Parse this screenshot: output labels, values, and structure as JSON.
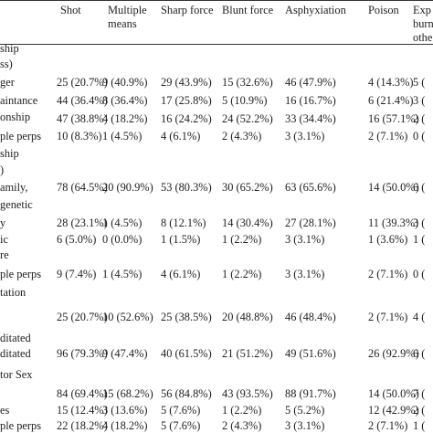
{
  "columns": [
    "Shot",
    "Multiple means",
    "Sharp force",
    "Blunt force",
    "Asphyxiation",
    "Poison",
    "Explosive, burn, other"
  ],
  "column_display": [
    [
      "Shot"
    ],
    [
      "Multiple",
      "means"
    ],
    [
      "Sharp force"
    ],
    [
      "Blunt force"
    ],
    [
      "Asphyxiation"
    ],
    [
      "Poison"
    ],
    [
      "Exp",
      "burn,",
      "othe"
    ]
  ],
  "rows": [
    {
      "label": "ship",
      "cells": []
    },
    {
      "label": "ss)",
      "cells": []
    },
    {
      "label": "ger",
      "cells": [
        "25 (20.7%)",
        "9 (40.9%)",
        "29 (43.9%)",
        "15 (32.6%)",
        "46 (47.9%)",
        "4 (14.3%)",
        "5 ("
      ]
    },
    {
      "label": "aintance",
      "cells": [
        "44 (36.4%)",
        "8 (36.4%)",
        "17 (25.8%)",
        "5 (10.9%)",
        "16 (16.7%)",
        "6 (21.4%)",
        "3 ("
      ]
    },
    {
      "label": "onship",
      "cells": []
    },
    {
      "label": "",
      "cells": [
        "47 (38.8%)",
        "4 (18.2%)",
        "16 (24.2%)",
        "24 (52.2%)",
        "33 (34.4%)",
        "16 (57.1%)",
        "2 ("
      ]
    },
    {
      "label": "ple perps",
      "cells": [
        "10 (8.3%)",
        "1 (4.5%)",
        "4 (6.1%)",
        "2 (4.3%)",
        "3 (3.1%)",
        "2 (7.1%)",
        "0 ("
      ]
    },
    {
      "label": "ship",
      "cells": []
    },
    {
      "label": ")",
      "cells": []
    },
    {
      "label": "amily,",
      "cells": [
        "78 (64.5%)",
        "20 (90.9%)",
        "53 (80.3%)",
        "30 (65.2%)",
        "63 (65.6%)",
        "14 (50.0%)",
        "6 ("
      ]
    },
    {
      "label": "genetic",
      "cells": []
    },
    {
      "label": "y",
      "cells": [
        "28 (23.1%)",
        "1 (4.5%)",
        "8 (12.1%)",
        "14 (30.4%)",
        "27 (28.1%)",
        "11 (39.3%)",
        "3 ("
      ]
    },
    {
      "label": "ic",
      "cells": [
        "6 (5.0%)",
        "0 (0.0%)",
        "1 (1.5%)",
        "1 (2.2%)",
        "3 (3.1%)",
        "1 (3.6%)",
        "1 ("
      ]
    },
    {
      "label": "re",
      "cells": []
    },
    {
      "label": "ple perps",
      "cells": [
        "9 (7.4%)",
        "1 (4.5%)",
        "4 (6.1%)",
        "1 (2.2%)",
        "3 (3.1%)",
        "2 (7.1%)",
        "0 ("
      ]
    },
    {
      "label": "tation",
      "cells": []
    },
    {
      "label": "",
      "cells": [
        "25 (20.7%)",
        "10 (52.6%)",
        "25 (38.5%)",
        "20 (48.8%)",
        "46 (48.4%)",
        "2 (7.1%)",
        "4 ("
      ]
    },
    {
      "label": "ditated",
      "cells": []
    },
    {
      "label": "ditated",
      "cells": [
        "96 (79.3%)",
        "9 (47.4%)",
        "40 (61.5%)",
        "21 (51.2%)",
        "49 (51.6%)",
        "26 (92.9%)",
        "6 ("
      ]
    },
    {
      "label": "tor Sex",
      "cells": []
    },
    {
      "label": "",
      "cells": [
        "84 (69.4%)",
        "15 (68.2%)",
        "56 (84.8%)",
        "43 (93.5%)",
        "88 (91.7%)",
        "14 (50.0%)",
        "7 ("
      ]
    },
    {
      "label": "es",
      "cells": [
        "15 (12.4%)",
        "3 (13.6%)",
        "5 (7.6%)",
        "1 (2.2%)",
        "5 (5.2%)",
        "12 (42.9%)",
        "2 ("
      ]
    },
    {
      "label": "ple perps",
      "cells": [
        "22 (18.2%)",
        "4 (18.2%)",
        "5 (7.6%)",
        "2 (4.3%)",
        "3 (3.1%)",
        "2 (7.1%)",
        "1 ("
      ]
    }
  ]
}
